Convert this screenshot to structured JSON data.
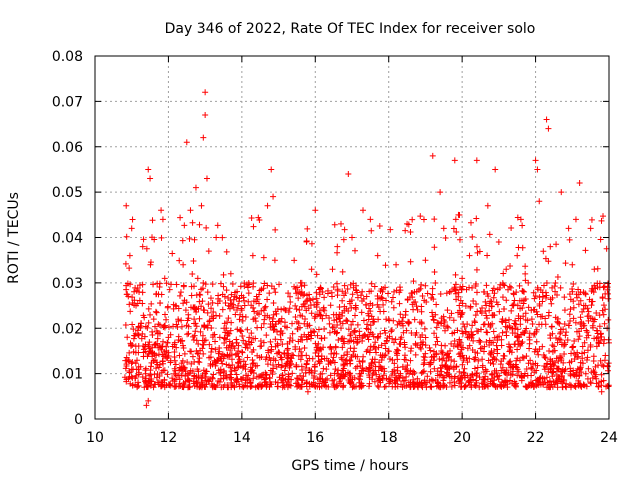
{
  "chart_data": {
    "type": "scatter",
    "title": "Day 346 of 2022, Rate Of TEC Index for receiver solo",
    "xlabel": "GPS time / hours",
    "ylabel": "ROTI / TECUs",
    "xlim": [
      10,
      24
    ],
    "ylim": [
      0,
      0.08
    ],
    "xticks": [
      10,
      12,
      14,
      16,
      18,
      20,
      22,
      24
    ],
    "yticks": [
      0,
      0.01,
      0.02,
      0.03,
      0.04,
      0.05,
      0.06,
      0.07,
      0.08
    ],
    "xtick_labels": [
      "10",
      "12",
      "14",
      "16",
      "18",
      "20",
      "22",
      "24"
    ],
    "ytick_labels": [
      "0",
      "0.01",
      "0.02",
      "0.03",
      "0.04",
      "0.05",
      "0.06",
      "0.07",
      "0.08"
    ],
    "grid": true,
    "marker": "+",
    "color": "#ff0000",
    "series": [
      {
        "name": "ROTI",
        "x_range": [
          10.8,
          24.0
        ],
        "typical_range": [
          0.007,
          0.03
        ],
        "points": [
          [
            10.85,
            0.047
          ],
          [
            10.9,
            0.013
          ],
          [
            10.95,
            0.036
          ],
          [
            11.0,
            0.042
          ],
          [
            11.1,
            0.009
          ],
          [
            11.2,
            0.028
          ],
          [
            11.3,
            0.038
          ],
          [
            11.4,
            0.003
          ],
          [
            11.45,
            0.004
          ],
          [
            11.45,
            0.055
          ],
          [
            11.5,
            0.053
          ],
          [
            11.5,
            0.015
          ],
          [
            11.6,
            0.022
          ],
          [
            11.7,
            0.012
          ],
          [
            11.8,
            0.046
          ],
          [
            11.85,
            0.044
          ],
          [
            11.9,
            0.031
          ],
          [
            12.0,
            0.018
          ],
          [
            12.1,
            0.009
          ],
          [
            12.2,
            0.025
          ],
          [
            12.3,
            0.014
          ],
          [
            12.4,
            0.034
          ],
          [
            12.5,
            0.061
          ],
          [
            12.6,
            0.046
          ],
          [
            12.7,
            0.022
          ],
          [
            12.75,
            0.051
          ],
          [
            12.8,
            0.031
          ],
          [
            12.9,
            0.047
          ],
          [
            12.95,
            0.062
          ],
          [
            13.0,
            0.067
          ],
          [
            13.0,
            0.072
          ],
          [
            13.05,
            0.053
          ],
          [
            13.1,
            0.037
          ],
          [
            13.2,
            0.012
          ],
          [
            13.3,
            0.04
          ],
          [
            13.4,
            0.026
          ],
          [
            13.5,
            0.009
          ],
          [
            13.6,
            0.019
          ],
          [
            13.7,
            0.032
          ],
          [
            13.8,
            0.007
          ],
          [
            13.9,
            0.015
          ],
          [
            14.0,
            0.024
          ],
          [
            14.1,
            0.011
          ],
          [
            14.2,
            0.018
          ],
          [
            14.3,
            0.036
          ],
          [
            14.4,
            0.027
          ],
          [
            14.5,
            0.016
          ],
          [
            14.6,
            0.021
          ],
          [
            14.7,
            0.047
          ],
          [
            14.8,
            0.055
          ],
          [
            14.85,
            0.049
          ],
          [
            14.9,
            0.035
          ],
          [
            15.0,
            0.012
          ],
          [
            15.1,
            0.008
          ],
          [
            15.2,
            0.024
          ],
          [
            15.3,
            0.017
          ],
          [
            15.4,
            0.014
          ],
          [
            15.5,
            0.009
          ],
          [
            15.6,
            0.03
          ],
          [
            15.7,
            0.021
          ],
          [
            15.8,
            0.006
          ],
          [
            15.9,
            0.033
          ],
          [
            16.0,
            0.046
          ],
          [
            16.1,
            0.015
          ],
          [
            16.2,
            0.028
          ],
          [
            16.3,
            0.011
          ],
          [
            16.4,
            0.019
          ],
          [
            16.5,
            0.023
          ],
          [
            16.6,
            0.038
          ],
          [
            16.7,
            0.043
          ],
          [
            16.8,
            0.012
          ],
          [
            16.9,
            0.054
          ],
          [
            17.0,
            0.04
          ],
          [
            17.1,
            0.018
          ],
          [
            17.2,
            0.008
          ],
          [
            17.3,
            0.046
          ],
          [
            17.4,
            0.027
          ],
          [
            17.5,
            0.044
          ],
          [
            17.6,
            0.016
          ],
          [
            17.7,
            0.036
          ],
          [
            17.8,
            0.011
          ],
          [
            17.9,
            0.029
          ],
          [
            18.0,
            0.022
          ],
          [
            18.1,
            0.013
          ],
          [
            18.2,
            0.034
          ],
          [
            18.3,
            0.009
          ],
          [
            18.4,
            0.019
          ],
          [
            18.5,
            0.043
          ],
          [
            18.6,
            0.015
          ],
          [
            18.7,
            0.028
          ],
          [
            18.8,
            0.007
          ],
          [
            18.9,
            0.021
          ],
          [
            19.0,
            0.035
          ],
          [
            19.1,
            0.012
          ],
          [
            19.2,
            0.058
          ],
          [
            19.3,
            0.018
          ],
          [
            19.4,
            0.05
          ],
          [
            19.5,
            0.042
          ],
          [
            19.6,
            0.024
          ],
          [
            19.7,
            0.013
          ],
          [
            19.8,
            0.057
          ],
          [
            19.9,
            0.045
          ],
          [
            20.0,
            0.031
          ],
          [
            20.1,
            0.019
          ],
          [
            20.2,
            0.036
          ],
          [
            20.3,
            0.026
          ],
          [
            20.4,
            0.057
          ],
          [
            20.5,
            0.017
          ],
          [
            20.6,
            0.028
          ],
          [
            20.7,
            0.047
          ],
          [
            20.8,
            0.015
          ],
          [
            20.9,
            0.055
          ],
          [
            21.0,
            0.039
          ],
          [
            21.1,
            0.022
          ],
          [
            21.2,
            0.033
          ],
          [
            21.3,
            0.012
          ],
          [
            21.4,
            0.025
          ],
          [
            21.5,
            0.036
          ],
          [
            21.6,
            0.044
          ],
          [
            21.7,
            0.019
          ],
          [
            21.8,
            0.03
          ],
          [
            21.9,
            0.022
          ],
          [
            22.0,
            0.057
          ],
          [
            22.05,
            0.055
          ],
          [
            22.1,
            0.048
          ],
          [
            22.2,
            0.027
          ],
          [
            22.3,
            0.066
          ],
          [
            22.35,
            0.064
          ],
          [
            22.4,
            0.038
          ],
          [
            22.5,
            0.016
          ],
          [
            22.6,
            0.007
          ],
          [
            22.7,
            0.05
          ],
          [
            22.8,
            0.024
          ],
          [
            22.9,
            0.042
          ],
          [
            23.0,
            0.034
          ],
          [
            23.1,
            0.044
          ],
          [
            23.2,
            0.052
          ],
          [
            23.3,
            0.021
          ],
          [
            23.4,
            0.013
          ],
          [
            23.5,
            0.042
          ],
          [
            23.6,
            0.033
          ],
          [
            23.7,
            0.018
          ],
          [
            23.8,
            0.006
          ],
          [
            23.85,
            0.029
          ],
          [
            23.9,
            0.014
          ],
          [
            23.95,
            0.02
          ]
        ]
      }
    ]
  }
}
